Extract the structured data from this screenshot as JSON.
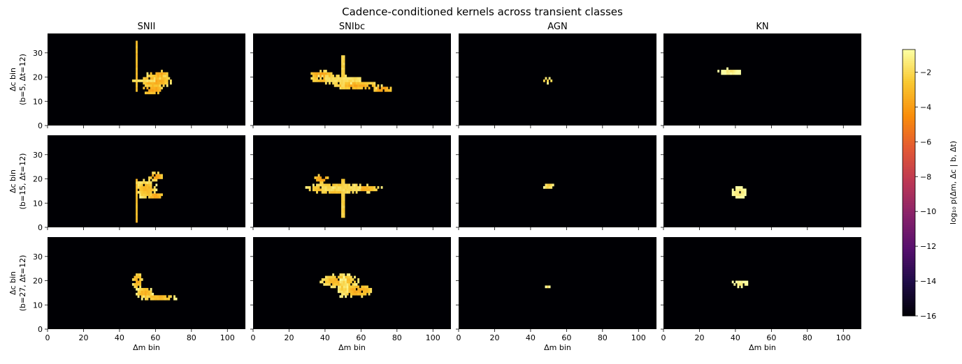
{
  "chart_data": {
    "type": "heatmap",
    "title": "Cadence-conditioned kernels across transient classes",
    "columns": [
      "SNII",
      "SNIbc",
      "AGN",
      "KN"
    ],
    "rows": [
      {
        "ylabel_line1": "Δc bin",
        "ylabel_line2": "(b=5, Δt=12)"
      },
      {
        "ylabel_line1": "Δc bin",
        "ylabel_line2": "(b=15, Δt=12)"
      },
      {
        "ylabel_line1": "Δc bin",
        "ylabel_line2": "(b=27, Δt=12)"
      }
    ],
    "xlabel": "Δm bin",
    "xlim": [
      0,
      110
    ],
    "ylim": [
      0,
      38
    ],
    "xticks": [
      "0",
      "20",
      "40",
      "60",
      "80",
      "100"
    ],
    "xtick_values": [
      0,
      20,
      40,
      60,
      80,
      100
    ],
    "yticks": [
      "0",
      "10",
      "20",
      "30"
    ],
    "ytick_values": [
      0,
      10,
      20,
      30
    ],
    "colorbar": {
      "label": "log₁₀ p(Δm, Δc | b, Δt)",
      "colormap": "inferno",
      "range": [
        -16,
        -0.7
      ],
      "ticks": [
        "−2",
        "−4",
        "−6",
        "−8",
        "−10",
        "−12",
        "−14",
        "−16"
      ],
      "tick_values": [
        -2,
        -4,
        -6,
        -8,
        -10,
        -12,
        -14,
        -16
      ]
    },
    "background_value": -16,
    "panels": [
      [
        {
          "class": "SNII",
          "blobs": [
            [
              60,
              18.5,
              8,
              2.5,
              -3.6
            ],
            [
              62,
              21,
              6,
              1.5,
              -3.7
            ],
            [
              58,
              15,
              6,
              2,
              -3.8
            ]
          ],
          "lines": [
            [
              49.5,
              14,
              35,
              0.7,
              -3.2,
              "v"
            ],
            [
              47,
              60,
              18.5,
              0.7,
              -2.1,
              "h"
            ]
          ]
        },
        {
          "class": "SNIbc",
          "blobs": [
            [
              45,
              19,
              14,
              1.6,
              -3.4
            ],
            [
              58,
              16.5,
              12,
              1.5,
              -3.6
            ],
            [
              38,
              21,
              6,
              1.4,
              -3.8
            ],
            [
              72,
              15,
              5,
              1,
              -4.2
            ]
          ],
          "lines": [
            [
              50,
              15,
              29,
              0.6,
              -2.4,
              "v"
            ],
            [
              40,
              60,
              19,
              0.7,
              -2.2,
              "h"
            ]
          ]
        },
        {
          "class": "AGN",
          "blobs": [
            [
              49.5,
              18.6,
              2.8,
              1.1,
              -2.6
            ]
          ],
          "lines": []
        },
        {
          "class": "KN",
          "blobs": [
            [
              37,
              22.2,
              6.5,
              1.2,
              -1.5
            ]
          ],
          "lines": []
        }
      ],
      [
        {
          "class": "SNII",
          "blobs": [
            [
              55,
              16,
              5,
              4,
              -3.2
            ],
            [
              60,
              21,
              4,
              1.5,
              -3.7
            ],
            [
              60,
              13,
              4,
              1.2,
              -3.8
            ]
          ],
          "lines": [
            [
              49.5,
              2,
              19.5,
              0.7,
              -3.3,
              "v"
            ],
            [
              49,
              58,
              18.5,
              0.7,
              -2.2,
              "h"
            ]
          ]
        },
        {
          "class": "SNIbc",
          "blobs": [
            [
              45,
              16,
              14,
              2,
              -3.4
            ],
            [
              58,
              16,
              12,
              1.5,
              -3.6
            ],
            [
              38,
              20,
              4,
              1.5,
              -4
            ]
          ],
          "lines": [
            [
              50,
              4,
              20,
              0.6,
              -2.6,
              "v"
            ],
            [
              38,
              60,
              16,
              0.7,
              -2.3,
              "h"
            ]
          ]
        },
        {
          "class": "AGN",
          "blobs": [
            [
              50,
              17.2,
              2.8,
              1.2,
              -2.4
            ]
          ],
          "lines": []
        },
        {
          "class": "KN",
          "blobs": [
            [
              42,
              14.3,
              4,
              2.6,
              -1.6
            ]
          ],
          "lines": []
        }
      ],
      [
        {
          "class": "SNII",
          "blobs": [
            [
              50,
              20,
              2.5,
              3,
              -3.5
            ],
            [
              54,
              15,
              4,
              2,
              -3.4
            ],
            [
              62,
              13,
              9,
              1,
              -3.3
            ]
          ],
          "lines": []
        },
        {
          "class": "SNIbc",
          "blobs": [
            [
              48,
              20,
              10,
              2.5,
              -3.3
            ],
            [
              58,
              16,
              8,
              2.5,
              -3.5
            ],
            [
              50,
              17,
              3,
              4,
              -2.5
            ]
          ],
          "lines": []
        },
        {
          "class": "AGN",
          "blobs": [
            [
              49.5,
              17.6,
              1.2,
              1,
              -1.8
            ]
          ],
          "lines": []
        },
        {
          "class": "KN",
          "blobs": [
            [
              43,
              18.8,
              4.5,
              1.3,
              -1.5
            ]
          ],
          "lines": []
        }
      ]
    ]
  }
}
